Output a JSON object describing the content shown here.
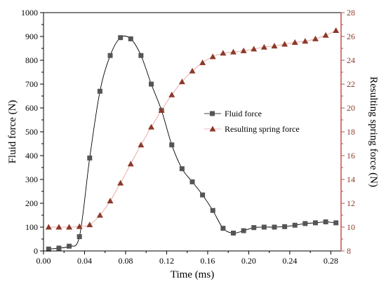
{
  "chart_data": {
    "type": "line",
    "xlabel": "Time (ms)",
    "ylabel_left": "Fluid force (N)",
    "ylabel_right": "Resulting spring force (N)",
    "xlim": [
      0,
      0.29
    ],
    "ylim_left": [
      0,
      1000
    ],
    "ylim_right": [
      8,
      28
    ],
    "x_ticks": [
      "0.00",
      "0.04",
      "0.08",
      "0.12",
      "0.16",
      "0.20",
      "0.24",
      "0.28"
    ],
    "x_tick_values": [
      0,
      0.04,
      0.08,
      0.12,
      0.16,
      0.2,
      0.24,
      0.28
    ],
    "y_left_ticks": [
      "0",
      "100",
      "200",
      "300",
      "400",
      "500",
      "600",
      "700",
      "800",
      "900",
      "1000"
    ],
    "y_left_tick_values": [
      0,
      100,
      200,
      300,
      400,
      500,
      600,
      700,
      800,
      900,
      1000
    ],
    "y_right_ticks": [
      "8",
      "10",
      "12",
      "14",
      "16",
      "18",
      "20",
      "22",
      "24",
      "26",
      "28"
    ],
    "y_right_tick_values": [
      8,
      10,
      12,
      14,
      16,
      18,
      20,
      22,
      24,
      26,
      28
    ],
    "legend_position": "center-right",
    "grid": false,
    "series": [
      {
        "name": "Fluid force",
        "axis": "left",
        "marker": "square",
        "color": "#555555",
        "line_color": "#000000",
        "x": [
          0.005,
          0.015,
          0.025,
          0.035,
          0.045,
          0.055,
          0.065,
          0.075,
          0.085,
          0.095,
          0.105,
          0.115,
          0.125,
          0.135,
          0.145,
          0.155,
          0.165,
          0.175,
          0.185,
          0.195,
          0.205,
          0.215,
          0.225,
          0.235,
          0.245,
          0.255,
          0.265,
          0.275,
          0.285
        ],
        "values": [
          8,
          12,
          20,
          60,
          390,
          670,
          820,
          895,
          890,
          820,
          700,
          590,
          445,
          345,
          290,
          235,
          170,
          95,
          75,
          85,
          98,
          100,
          100,
          102,
          108,
          115,
          118,
          122,
          118
        ]
      },
      {
        "name": "Resulting spring force",
        "axis": "right",
        "marker": "triangle",
        "color": "#8b3a2a",
        "line_color": "#e8a3a0",
        "x": [
          0.005,
          0.015,
          0.025,
          0.035,
          0.045,
          0.055,
          0.065,
          0.075,
          0.085,
          0.095,
          0.105,
          0.115,
          0.125,
          0.135,
          0.145,
          0.155,
          0.165,
          0.175,
          0.185,
          0.195,
          0.205,
          0.215,
          0.225,
          0.235,
          0.245,
          0.255,
          0.265,
          0.275,
          0.285
        ],
        "values": [
          10,
          10,
          10,
          10.05,
          10.2,
          11,
          12.2,
          13.7,
          15.3,
          16.9,
          18.4,
          19.8,
          21.1,
          22.2,
          23.1,
          23.8,
          24.3,
          24.6,
          24.7,
          24.8,
          24.95,
          25.1,
          25.2,
          25.35,
          25.5,
          25.6,
          25.8,
          26.1,
          26.5
        ]
      }
    ]
  }
}
